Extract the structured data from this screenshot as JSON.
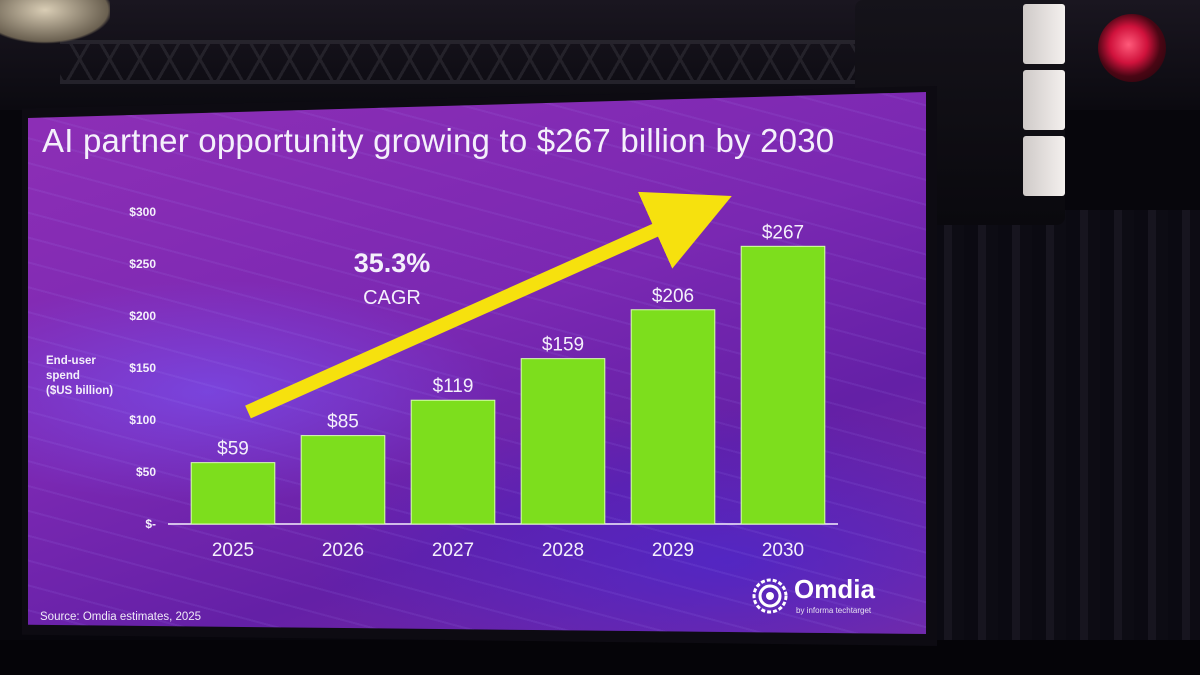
{
  "slide": {
    "title": "AI partner opportunity growing to $267 billion by 2030",
    "cagr_value": "35.3%",
    "cagr_label": "CAGR",
    "source": "Source: Omdia estimates, 2025"
  },
  "logo": {
    "name": "Omdia",
    "tagline": "by informa techtarget"
  },
  "colors": {
    "bar": "#7dde1d",
    "arrow": "#f6e10e",
    "text": "#f4f0fb"
  },
  "chart_data": {
    "type": "bar",
    "title": "AI partner opportunity growing to $267 billion by 2030",
    "ylabel": "End-user spend ($US billion)",
    "ylabel_lines": [
      "End-user",
      "spend",
      "($US billion)"
    ],
    "categories": [
      "2025",
      "2026",
      "2027",
      "2028",
      "2029",
      "2030"
    ],
    "values": [
      59,
      85,
      119,
      159,
      206,
      267
    ],
    "data_labels": [
      "$59",
      "$85",
      "$119",
      "$159",
      "$206",
      "$267"
    ],
    "ylim": [
      0,
      300
    ],
    "yticks": [
      0,
      50,
      100,
      150,
      200,
      250,
      300
    ],
    "ytick_labels": [
      "$-",
      "$50",
      "$100",
      "$150",
      "$200",
      "$250",
      "$300"
    ],
    "grid": false,
    "annotations": [
      "35.3% CAGR"
    ]
  }
}
